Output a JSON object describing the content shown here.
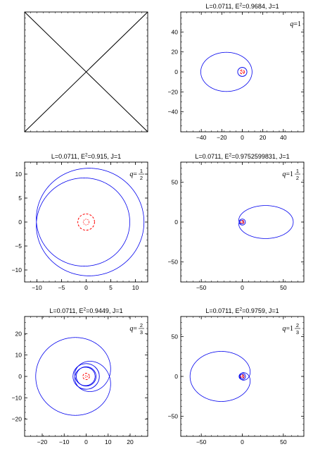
{
  "chart_data": [
    {
      "type": "diagram",
      "title": "",
      "xlim": [
        0,
        1
      ],
      "ylim": [
        0,
        1
      ],
      "xticks": [],
      "yticks": [],
      "segments": [
        {
          "from": [
            0,
            0
          ],
          "to": [
            1,
            1
          ]
        },
        {
          "from": [
            0,
            1
          ],
          "to": [
            1,
            0
          ]
        }
      ],
      "label": null,
      "orbit": null,
      "horizon": null,
      "inner_circles": []
    },
    {
      "type": "orbit",
      "title": "L=0.0711, E",
      "title_sup": "2",
      "title_rest": "=0.9684, J=1",
      "xlim": [
        -60,
        60
      ],
      "ylim": [
        -60,
        60
      ],
      "xticks": [
        -40,
        -20,
        0,
        20,
        40
      ],
      "yticks": [
        -40,
        -20,
        0,
        20,
        40
      ],
      "label": {
        "var": "q",
        "eq": "=",
        "whole": "1",
        "num": "",
        "den": ""
      },
      "orbit": {
        "a": 25,
        "e": 0.62,
        "n": 1,
        "prec": 0
      },
      "horizon": {
        "r": 2,
        "color": "#ff0000"
      },
      "inner_circles": [
        {
          "r": 4.5,
          "color": "#0000ee"
        }
      ]
    },
    {
      "type": "orbit",
      "title": "L=0.0711, E",
      "title_sup": "2",
      "title_rest": "=0.915, J=1",
      "xlim": [
        -12.5,
        12.5
      ],
      "ylim": [
        -12.5,
        12.5
      ],
      "xticks": [
        -10,
        -5,
        0,
        5,
        10
      ],
      "yticks": [
        -10,
        -5,
        0,
        5,
        10
      ],
      "label": {
        "var": "q",
        "eq": "=",
        "whole": "",
        "num": "1",
        "den": "2"
      },
      "orbit": {
        "a": 10.3,
        "e": 0.14,
        "n": 3,
        "prec": 3.14159
      },
      "horizon": {
        "r": 1.7,
        "color": "#ff0000"
      },
      "inner_circles": []
    },
    {
      "type": "orbit",
      "title": "L=0.0711, E",
      "title_sup": "2",
      "title_rest": "=0.9752599831, J=1",
      "xlim": [
        -75,
        75
      ],
      "ylim": [
        -75,
        75
      ],
      "xticks": [
        -50,
        0,
        50
      ],
      "yticks": [
        -50,
        0,
        50
      ],
      "label": {
        "var": "q",
        "eq": "=",
        "whole": "1",
        "num": "1",
        "den": "2"
      },
      "orbit": {
        "a": 32,
        "e": 0.94,
        "n": 2,
        "prec": 3.14159
      },
      "horizon": {
        "r": 2,
        "color": "#ff0000"
      },
      "inner_circles": [
        {
          "r": 3.8,
          "color": "#0000ee"
        }
      ]
    },
    {
      "type": "orbit",
      "title": "L=0.0711, E",
      "title_sup": "2",
      "title_rest": "=0.9449, J=1",
      "xlim": [
        -28,
        28
      ],
      "ylim": [
        -28,
        28
      ],
      "xticks": [
        -20,
        -10,
        0,
        10,
        20
      ],
      "yticks": [
        -20,
        -10,
        0,
        10,
        20
      ],
      "label": {
        "var": "q",
        "eq": "=",
        "whole": "",
        "num": "2",
        "den": "3"
      },
      "orbit": {
        "a": 13.5,
        "e": 0.7,
        "n": 3,
        "prec": 4.18879
      },
      "horizon": {
        "r": 1.5,
        "color": "#ff0000"
      },
      "inner_circles": [
        {
          "r": 4.5,
          "color": "#0000ee"
        },
        {
          "r": 6,
          "color": "#0000ee"
        }
      ]
    },
    {
      "type": "orbit",
      "title": "L=0.0711, E",
      "title_sup": "2",
      "title_rest": "=0.9759, J=1",
      "xlim": [
        -75,
        75
      ],
      "ylim": [
        -75,
        75
      ],
      "xticks": [
        -50,
        0,
        50
      ],
      "yticks": [
        -50,
        0,
        50
      ],
      "label": {
        "var": "q",
        "eq": "=",
        "whole": "1",
        "num": "2",
        "den": "3"
      },
      "orbit": {
        "a": 33,
        "e": 0.93,
        "n": 3,
        "prec": 4.18879
      },
      "horizon": {
        "r": 2,
        "color": "#ff0000"
      },
      "inner_circles": [
        {
          "r": 4,
          "color": "#0000ee"
        }
      ]
    }
  ]
}
